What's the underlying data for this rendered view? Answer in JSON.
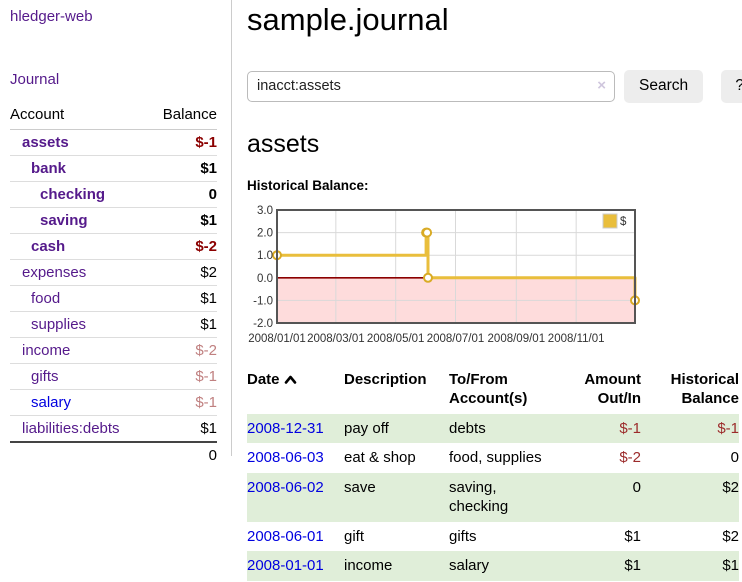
{
  "colors": {
    "link_purple": "#551a8b",
    "link_blue": "#0000e0",
    "negative_strong": "#8b0000",
    "negative_soft": "#c08080",
    "negative_table": "#9c2b2b",
    "row_highlight_green": "#e0eed9",
    "series_gold": "#e9be3c",
    "marker_ring_gold": "#d9ab25",
    "negative_region_pink": "#fedcdc",
    "zero_line_red": "#8b0000",
    "grid_gray": "#d9d9d9",
    "plot_border": "#555"
  },
  "sidebar": {
    "brand": "hledger-web",
    "journal_link": "Journal",
    "accounts_table": {
      "headers": {
        "account": "Account",
        "balance": "Balance"
      },
      "rows": [
        {
          "name": "assets",
          "balance": "$-1",
          "depth": 1,
          "emphasis": true,
          "tone": "negative-strong",
          "link": "purple"
        },
        {
          "name": "bank",
          "balance": "$1",
          "depth": 2,
          "emphasis": true,
          "tone": "normal",
          "link": "purple"
        },
        {
          "name": "checking",
          "balance": "0",
          "depth": 3,
          "emphasis": true,
          "tone": "normal",
          "link": "purple"
        },
        {
          "name": "saving",
          "balance": "$1",
          "depth": 3,
          "emphasis": true,
          "tone": "normal",
          "link": "purple"
        },
        {
          "name": "cash",
          "balance": "$-2",
          "depth": 2,
          "emphasis": true,
          "tone": "negative-strong",
          "link": "purple"
        },
        {
          "name": "expenses",
          "balance": "$2",
          "depth": 1,
          "emphasis": false,
          "tone": "normal",
          "link": "purple"
        },
        {
          "name": "food",
          "balance": "$1",
          "depth": 2,
          "emphasis": false,
          "tone": "normal",
          "link": "purple"
        },
        {
          "name": "supplies",
          "balance": "$1",
          "depth": 2,
          "emphasis": false,
          "tone": "normal",
          "link": "purple"
        },
        {
          "name": "income",
          "balance": "$-2",
          "depth": 1,
          "emphasis": false,
          "tone": "negative-soft",
          "link": "purple"
        },
        {
          "name": "gifts",
          "balance": "$-1",
          "depth": 2,
          "emphasis": false,
          "tone": "negative-soft",
          "link": "purple"
        },
        {
          "name": "salary",
          "balance": "$-1",
          "depth": 2,
          "emphasis": false,
          "tone": "negative-soft",
          "link": "blue"
        },
        {
          "name": "liabilities:debts",
          "balance": "$1",
          "depth": 1,
          "emphasis": false,
          "tone": "normal",
          "link": "purple"
        }
      ],
      "total": "0"
    }
  },
  "main": {
    "title": "sample.journal",
    "search": {
      "value": "inacct:assets",
      "clear_icon": "×",
      "search_button": "Search",
      "help_button": "?"
    },
    "account_heading": "assets",
    "chart_heading": "Historical Balance:"
  },
  "chart_data": {
    "type": "line",
    "style": "step",
    "title": "Historical Balance",
    "legend": [
      {
        "label": "$"
      }
    ],
    "legend_position": "top-right",
    "grid": true,
    "negative_region_shaded": true,
    "x_range": [
      "2008-01-01",
      "2008-12-31"
    ],
    "ylim": [
      -2.0,
      3.0
    ],
    "y_ticks": [
      "3.0",
      "2.0",
      "1.0",
      "0.0",
      "-1.0",
      "-2.0"
    ],
    "x_ticks": [
      "2008/01/01",
      "2008/03/01",
      "2008/05/01",
      "2008/07/01",
      "2008/09/01",
      "2008/11/01"
    ],
    "series": [
      {
        "name": "$",
        "points": [
          {
            "date": "2008-01-01",
            "value": 1
          },
          {
            "date": "2008-06-01",
            "value": 2
          },
          {
            "date": "2008-06-02",
            "value": 2
          },
          {
            "date": "2008-06-03",
            "value": 0
          },
          {
            "date": "2008-12-31",
            "value": -1
          }
        ]
      }
    ]
  },
  "register": {
    "columns": [
      "Date",
      "Description",
      "To/From Account(s)",
      "Amount Out/In",
      "Historical Balance"
    ],
    "sort": {
      "column": "Date",
      "direction": "ascending"
    },
    "rows": [
      {
        "date": "2008-12-31",
        "description": "pay off",
        "accounts": "debts",
        "amount": "$-1",
        "amount_negative": true,
        "balance": "$-1",
        "balance_negative": true,
        "highlighted": true
      },
      {
        "date": "2008-06-03",
        "description": "eat & shop",
        "accounts": "food, supplies",
        "amount": "$-2",
        "amount_negative": true,
        "balance": "0",
        "balance_negative": false,
        "highlighted": false
      },
      {
        "date": "2008-06-02",
        "description": "save",
        "accounts": "saving, checking",
        "amount": "0",
        "amount_negative": false,
        "balance": "$2",
        "balance_negative": false,
        "highlighted": true
      },
      {
        "date": "2008-06-01",
        "description": "gift",
        "accounts": "gifts",
        "amount": "$1",
        "amount_negative": false,
        "balance": "$2",
        "balance_negative": false,
        "highlighted": false
      },
      {
        "date": "2008-01-01",
        "description": "income",
        "accounts": "salary",
        "amount": "$1",
        "amount_negative": false,
        "balance": "$1",
        "balance_negative": false,
        "highlighted": true
      }
    ]
  }
}
